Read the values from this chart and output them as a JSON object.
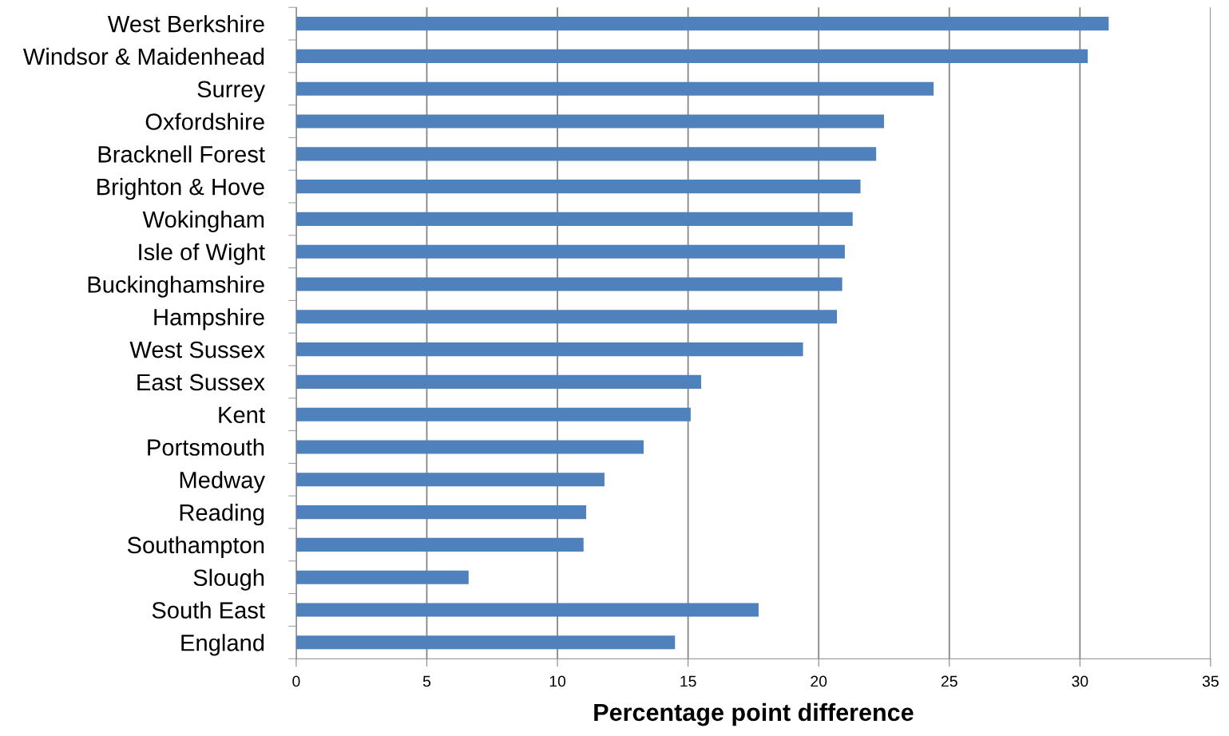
{
  "chart_data": {
    "type": "bar",
    "orientation": "horizontal",
    "xlabel": "Percentage point difference",
    "categories": [
      "West Berkshire",
      "Windsor & Maidenhead",
      "Surrey",
      "Oxfordshire",
      "Bracknell Forest",
      "Brighton & Hove",
      "Wokingham",
      "Isle of Wight",
      "Buckinghamshire",
      "Hampshire",
      "West Sussex",
      "East Sussex",
      "Kent",
      "Portsmouth",
      "Medway",
      "Reading",
      "Southampton",
      "Slough",
      "South East",
      "England"
    ],
    "values": [
      31.1,
      30.3,
      24.4,
      22.5,
      22.2,
      21.6,
      21.3,
      21.0,
      20.9,
      20.7,
      19.4,
      15.5,
      15.1,
      13.3,
      11.8,
      11.1,
      11.0,
      6.6,
      17.7,
      14.5
    ],
    "color": "#4f81bd",
    "xlim": [
      0,
      35
    ],
    "xticks": [
      0,
      5,
      10,
      15,
      20,
      25,
      30,
      35
    ],
    "grid": "x"
  }
}
